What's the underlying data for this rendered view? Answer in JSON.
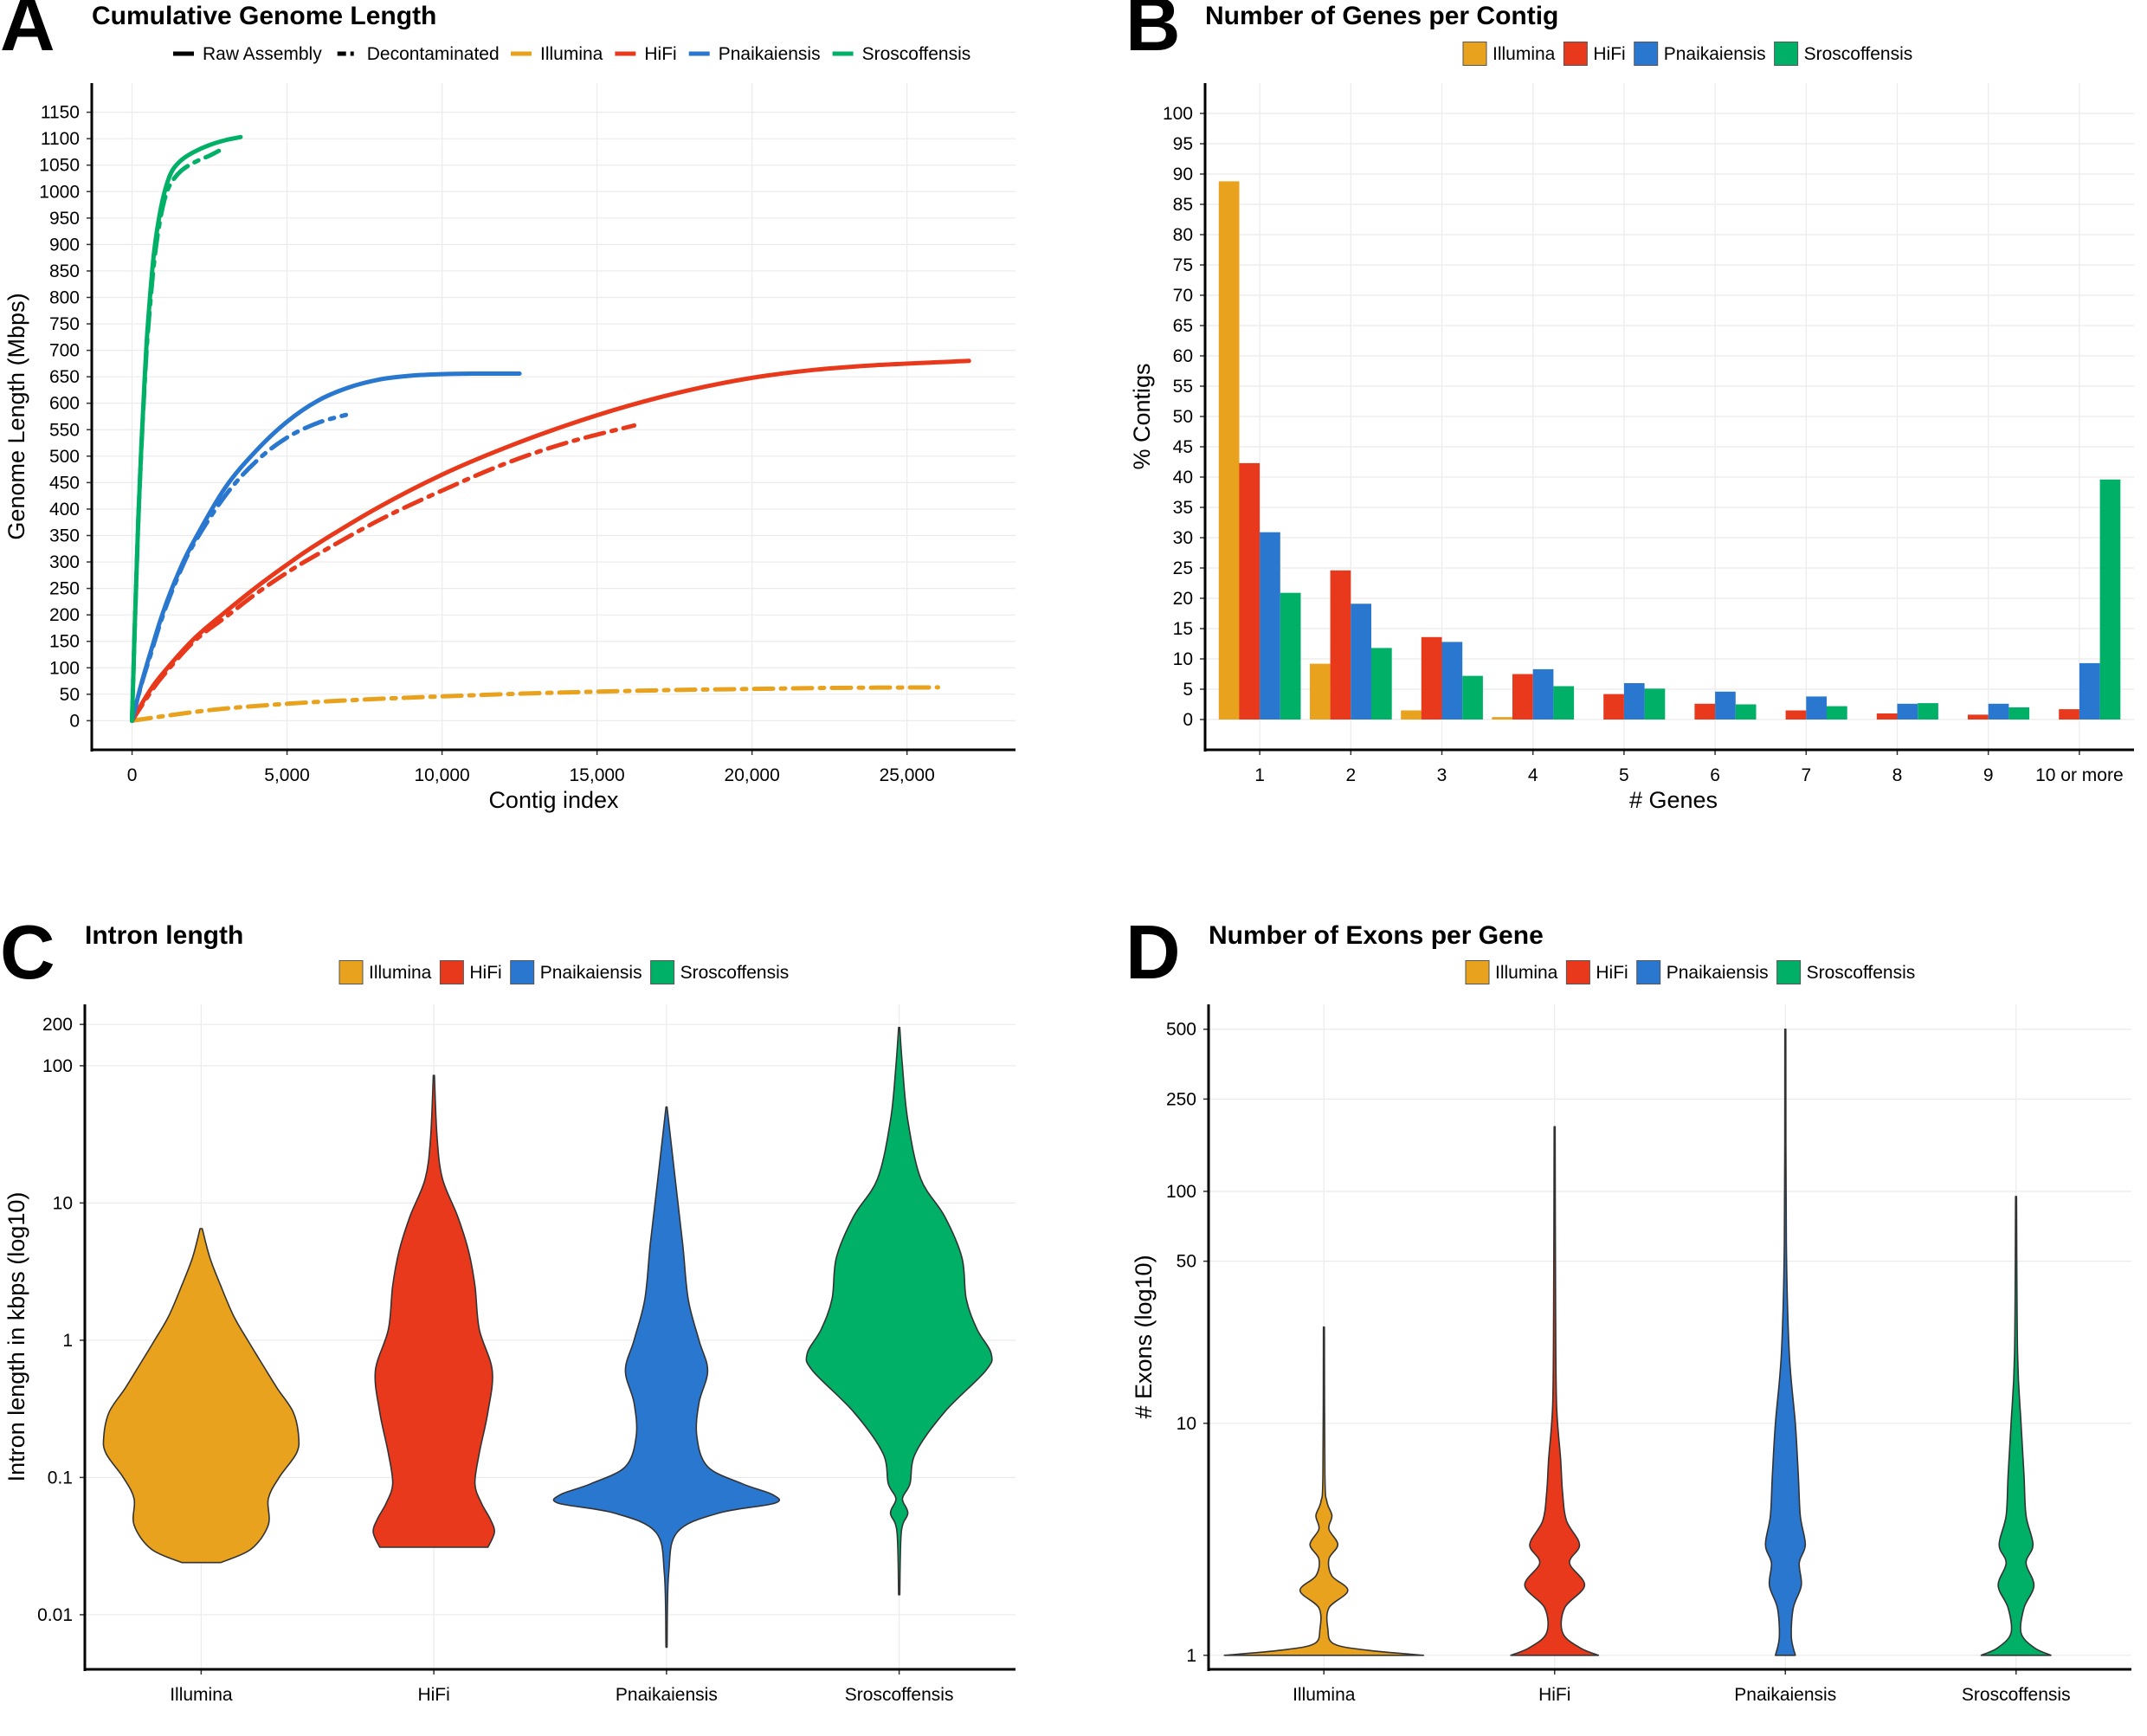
{
  "colors": {
    "Illumina": "#E8A21D",
    "HiFi": "#E8391C",
    "Pnaikaiensis": "#2A77D0",
    "Sroscoffensis": "#00B067"
  },
  "chart_data": [
    {
      "panel": "A",
      "type": "line",
      "title": "Cumulative Genome Length",
      "xlabel": "Contig index",
      "ylabel": "Genome Length (Mbps)",
      "xlim": [
        -1300,
        28500
      ],
      "ylim": [
        -55,
        1205
      ],
      "xticks": [
        0,
        5000,
        10000,
        15000,
        20000,
        25000
      ],
      "xtick_labels": [
        "0",
        "5,000",
        "10,000",
        "15,000",
        "20,000",
        "25,000"
      ],
      "yticks": [
        0,
        50,
        100,
        150,
        200,
        250,
        300,
        350,
        400,
        450,
        500,
        550,
        600,
        650,
        700,
        750,
        800,
        850,
        900,
        950,
        1000,
        1050,
        1100,
        1150
      ],
      "linetype_legend": [
        "Raw Assembly",
        "Decontaminated"
      ],
      "color_legend": [
        "Illumina",
        "HiFi",
        "Pnaikaiensis",
        "Sroscoffensis"
      ],
      "legend_position": "top",
      "grid": true,
      "series": [
        {
          "name": "Illumina",
          "assembly": "Decontaminated",
          "x": [
            0,
            2500,
            5000,
            7500,
            10000,
            12500,
            15000,
            17500,
            20000,
            22500,
            26000
          ],
          "y": [
            0,
            20,
            32,
            40,
            46,
            51,
            55,
            58,
            60,
            62,
            63
          ]
        },
        {
          "name": "HiFi",
          "assembly": "Raw Assembly",
          "x": [
            0,
            500,
            1000,
            2000,
            3000,
            4000,
            5000,
            6000,
            8000,
            10000,
            12000,
            14000,
            16000,
            18000,
            20000,
            22000,
            24000,
            27000
          ],
          "y": [
            0,
            50,
            90,
            155,
            205,
            252,
            295,
            335,
            405,
            465,
            515,
            558,
            595,
            625,
            648,
            663,
            672,
            680
          ]
        },
        {
          "name": "HiFi",
          "assembly": "Decontaminated",
          "x": [
            0,
            500,
            1000,
            2000,
            3000,
            4000,
            5000,
            6000,
            8000,
            10000,
            12000,
            14000,
            16200
          ],
          "y": [
            0,
            45,
            85,
            150,
            195,
            240,
            280,
            315,
            380,
            435,
            485,
            525,
            558
          ]
        },
        {
          "name": "Pnaikaiensis",
          "assembly": "Raw Assembly",
          "x": [
            0,
            300,
            600,
            1000,
            1500,
            2000,
            3000,
            4000,
            5000,
            6000,
            7000,
            8000,
            9000,
            10000,
            11000,
            12500
          ],
          "y": [
            0,
            70,
            130,
            205,
            280,
            340,
            440,
            510,
            565,
            605,
            630,
            645,
            652,
            655,
            656,
            656
          ]
        },
        {
          "name": "Pnaikaiensis",
          "assembly": "Decontaminated",
          "x": [
            0,
            300,
            600,
            1000,
            1500,
            2000,
            3000,
            4000,
            5000,
            6000,
            6900
          ],
          "y": [
            0,
            68,
            125,
            200,
            275,
            335,
            425,
            490,
            535,
            563,
            578
          ]
        },
        {
          "name": "Sroscoffensis",
          "assembly": "Raw Assembly",
          "x": [
            0,
            100,
            200,
            300,
            400,
            500,
            700,
            900,
            1100,
            1300,
            1600,
            2000,
            2500,
            3000,
            3500
          ],
          "y": [
            0,
            200,
            380,
            520,
            640,
            740,
            880,
            960,
            1010,
            1040,
            1060,
            1075,
            1088,
            1097,
            1103
          ]
        },
        {
          "name": "Sroscoffensis",
          "assembly": "Decontaminated",
          "x": [
            0,
            100,
            200,
            300,
            400,
            500,
            700,
            900,
            1100,
            1300,
            1600,
            2000,
            2500,
            2800
          ],
          "y": [
            0,
            200,
            375,
            515,
            630,
            725,
            860,
            945,
            995,
            1020,
            1040,
            1055,
            1068,
            1077
          ]
        }
      ]
    },
    {
      "panel": "B",
      "type": "bar",
      "title": "Number of Genes per Contig",
      "xlabel": "# Genes",
      "ylabel": "% Contigs",
      "ylim": [
        -5,
        105
      ],
      "yticks": [
        0,
        5,
        10,
        15,
        20,
        25,
        30,
        35,
        40,
        45,
        50,
        55,
        60,
        65,
        70,
        75,
        80,
        85,
        90,
        95,
        100
      ],
      "categories": [
        "1",
        "2",
        "3",
        "4",
        "5",
        "6",
        "7",
        "8",
        "9",
        "10 or more"
      ],
      "legend_position": "top",
      "grid": true,
      "series": [
        {
          "name": "Illumina",
          "values": [
            88.8,
            9.2,
            1.5,
            0.4,
            0,
            0,
            0,
            0,
            0,
            0
          ]
        },
        {
          "name": "HiFi",
          "values": [
            42.3,
            24.6,
            13.6,
            7.5,
            4.2,
            2.6,
            1.5,
            1.0,
            0.8,
            1.7
          ]
        },
        {
          "name": "Pnaikaiensis",
          "values": [
            30.9,
            19.1,
            12.8,
            8.3,
            6.0,
            4.6,
            3.8,
            2.6,
            2.6,
            9.3
          ]
        },
        {
          "name": "Sroscoffensis",
          "values": [
            20.9,
            11.8,
            7.2,
            5.5,
            5.1,
            2.5,
            2.2,
            2.7,
            2.0,
            39.6
          ]
        }
      ]
    },
    {
      "panel": "C",
      "type": "violin",
      "title": "Intron length",
      "xlabel": "",
      "ylabel": "Intron length in kbps (log10)",
      "yscale": "log10",
      "ylim": [
        0.004,
        280
      ],
      "yticks": [
        0.01,
        0.1,
        1,
        10,
        100,
        200
      ],
      "ytick_labels": [
        "0.01",
        "0.1",
        "1",
        "10",
        "100",
        "200"
      ],
      "categories": [
        "Illumina",
        "HiFi",
        "Pnaikaiensis",
        "Sroscoffensis"
      ],
      "legend_position": "top",
      "grid": true,
      "series": [
        {
          "name": "Illumina",
          "min": 0.024,
          "max": 6.5,
          "profile": [
            [
              0.024,
              0.18
            ],
            [
              0.03,
              0.46
            ],
            [
              0.045,
              0.62
            ],
            [
              0.07,
              0.62
            ],
            [
              0.1,
              0.72
            ],
            [
              0.15,
              0.88
            ],
            [
              0.2,
              0.9
            ],
            [
              0.3,
              0.85
            ],
            [
              0.45,
              0.7
            ],
            [
              0.7,
              0.55
            ],
            [
              1.0,
              0.43
            ],
            [
              1.5,
              0.3
            ],
            [
              2.5,
              0.18
            ],
            [
              4.0,
              0.08
            ],
            [
              6.5,
              0.01
            ]
          ]
        },
        {
          "name": "HiFi",
          "min": 0.031,
          "max": 85,
          "profile": [
            [
              0.031,
              0.5
            ],
            [
              0.04,
              0.56
            ],
            [
              0.05,
              0.52
            ],
            [
              0.065,
              0.44
            ],
            [
              0.09,
              0.38
            ],
            [
              0.15,
              0.42
            ],
            [
              0.3,
              0.5
            ],
            [
              0.6,
              0.54
            ],
            [
              1.2,
              0.42
            ],
            [
              2.5,
              0.38
            ],
            [
              4.5,
              0.32
            ],
            [
              8,
              0.22
            ],
            [
              15,
              0.08
            ],
            [
              30,
              0.03
            ],
            [
              85,
              0.005
            ]
          ]
        },
        {
          "name": "Pnaikaiensis",
          "min": 0.0058,
          "max": 50,
          "profile": [
            [
              0.0058,
              0.005
            ],
            [
              0.02,
              0.02
            ],
            [
              0.04,
              0.1
            ],
            [
              0.055,
              0.48
            ],
            [
              0.065,
              1.0
            ],
            [
              0.075,
              0.98
            ],
            [
              0.09,
              0.7
            ],
            [
              0.12,
              0.38
            ],
            [
              0.2,
              0.28
            ],
            [
              0.35,
              0.3
            ],
            [
              0.6,
              0.38
            ],
            [
              1.0,
              0.3
            ],
            [
              2.0,
              0.2
            ],
            [
              5,
              0.15
            ],
            [
              15,
              0.08
            ],
            [
              50,
              0.005
            ]
          ]
        },
        {
          "name": "Sroscoffensis",
          "min": 0.014,
          "max": 190,
          "profile": [
            [
              0.014,
              0.005
            ],
            [
              0.04,
              0.02
            ],
            [
              0.055,
              0.08
            ],
            [
              0.07,
              0.03
            ],
            [
              0.09,
              0.1
            ],
            [
              0.15,
              0.15
            ],
            [
              0.3,
              0.42
            ],
            [
              0.6,
              0.8
            ],
            [
              0.8,
              0.85
            ],
            [
              1.2,
              0.72
            ],
            [
              2.0,
              0.62
            ],
            [
              4.0,
              0.58
            ],
            [
              8,
              0.42
            ],
            [
              15,
              0.2
            ],
            [
              40,
              0.08
            ],
            [
              100,
              0.03
            ],
            [
              190,
              0.005
            ]
          ]
        }
      ]
    },
    {
      "panel": "D",
      "type": "violin",
      "title": "Number of Exons per Gene",
      "xlabel": "",
      "ylabel": "# Exons (log10)",
      "yscale": "log10",
      "ylim": [
        0.87,
        640
      ],
      "yticks": [
        1,
        10,
        50,
        100,
        250,
        500
      ],
      "ytick_labels": [
        "1",
        "10",
        "50",
        "100",
        "250",
        "500"
      ],
      "categories": [
        "Illumina",
        "HiFi",
        "Pnaikaiensis",
        "Sroscoffensis"
      ],
      "legend_position": "top",
      "grid": true,
      "series": [
        {
          "name": "Illumina",
          "min": 1,
          "max": 26,
          "profile": [
            [
              1.0,
              1.0
            ],
            [
              1.05,
              0.45
            ],
            [
              1.12,
              0.1
            ],
            [
              1.3,
              0.04
            ],
            [
              1.6,
              0.05
            ],
            [
              1.9,
              0.24
            ],
            [
              2.2,
              0.08
            ],
            [
              2.6,
              0.05
            ],
            [
              3.0,
              0.14
            ],
            [
              3.5,
              0.05
            ],
            [
              4.0,
              0.08
            ],
            [
              4.6,
              0.03
            ],
            [
              6,
              0.01
            ],
            [
              26,
              0.005
            ]
          ]
        },
        {
          "name": "HiFi",
          "min": 1,
          "max": 190,
          "profile": [
            [
              1.0,
              0.44
            ],
            [
              1.08,
              0.25
            ],
            [
              1.25,
              0.08
            ],
            [
              1.6,
              0.1
            ],
            [
              2.0,
              0.3
            ],
            [
              2.5,
              0.15
            ],
            [
              3.0,
              0.25
            ],
            [
              3.8,
              0.12
            ],
            [
              5,
              0.08
            ],
            [
              7,
              0.06
            ],
            [
              12,
              0.02
            ],
            [
              30,
              0.01
            ],
            [
              190,
              0.005
            ]
          ]
        },
        {
          "name": "Pnaikaiensis",
          "min": 1,
          "max": 500,
          "profile": [
            [
              1.0,
              0.1
            ],
            [
              1.2,
              0.06
            ],
            [
              1.6,
              0.08
            ],
            [
              2.0,
              0.16
            ],
            [
              2.5,
              0.14
            ],
            [
              3.0,
              0.2
            ],
            [
              4.0,
              0.15
            ],
            [
              6,
              0.13
            ],
            [
              10,
              0.1
            ],
            [
              20,
              0.04
            ],
            [
              60,
              0.01
            ],
            [
              500,
              0.005
            ]
          ]
        },
        {
          "name": "Sroscoffensis",
          "min": 1,
          "max": 95,
          "profile": [
            [
              1.0,
              0.35
            ],
            [
              1.08,
              0.18
            ],
            [
              1.25,
              0.05
            ],
            [
              1.6,
              0.08
            ],
            [
              2.0,
              0.18
            ],
            [
              2.5,
              0.1
            ],
            [
              3.0,
              0.17
            ],
            [
              4.0,
              0.1
            ],
            [
              6,
              0.08
            ],
            [
              10,
              0.05
            ],
            [
              20,
              0.015
            ],
            [
              95,
              0.005
            ]
          ]
        }
      ]
    }
  ]
}
